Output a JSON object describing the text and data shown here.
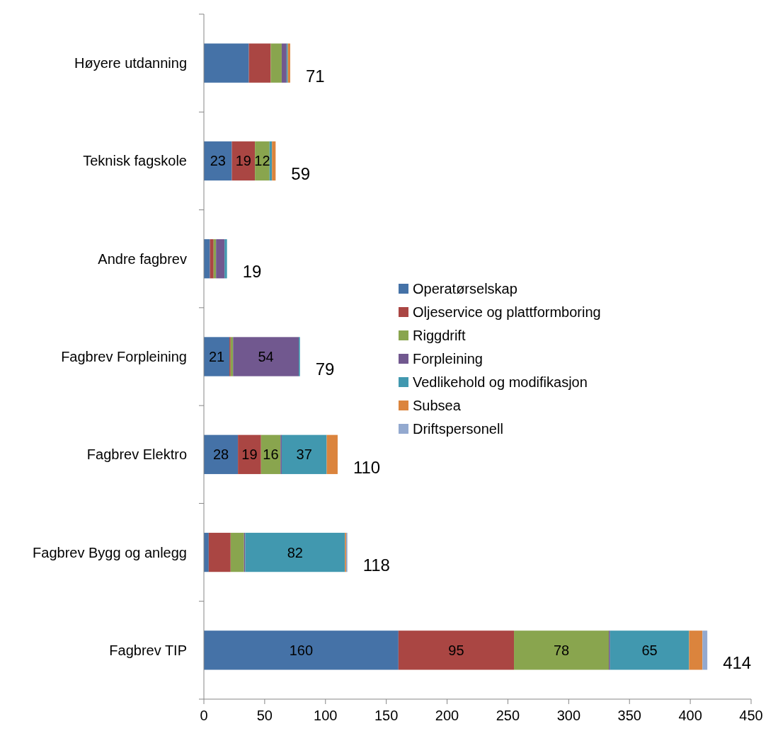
{
  "chart_data": {
    "type": "bar",
    "orientation": "horizontal",
    "stacked": true,
    "categories": [
      "Høyere utdanning",
      "Teknisk fagskole",
      "Andre fagbrev",
      "Fagbrev Forpleining",
      "Fagbrev Elektro",
      "Fagbrev Bygg og anlegg",
      "Fagbrev TIP"
    ],
    "series": [
      {
        "name": "Operatørselskap",
        "color": "#4572a7",
        "values": [
          37,
          23,
          5,
          21,
          28,
          4,
          160
        ],
        "value_labels": [
          null,
          "23",
          null,
          "21",
          "28",
          null,
          "160"
        ]
      },
      {
        "name": "Oljeservice og plattformboring",
        "color": "#aa4643",
        "values": [
          18,
          19,
          3,
          1,
          19,
          18,
          95
        ],
        "value_labels": [
          null,
          "19",
          null,
          null,
          "19",
          null,
          "95"
        ]
      },
      {
        "name": "Riggdrift",
        "color": "#89a54e",
        "values": [
          9,
          12,
          2,
          2,
          16,
          11,
          78
        ],
        "value_labels": [
          null,
          "12",
          null,
          null,
          "16",
          null,
          "78"
        ]
      },
      {
        "name": "Forpleining",
        "color": "#71588f",
        "values": [
          4,
          0,
          7,
          54,
          1,
          1,
          1
        ],
        "value_labels": [
          null,
          null,
          null,
          "54",
          null,
          null,
          null
        ]
      },
      {
        "name": "Vedlikehold og modifikasjon",
        "color": "#4198af",
        "values": [
          1,
          2,
          2,
          1,
          37,
          82,
          65
        ],
        "value_labels": [
          null,
          null,
          null,
          null,
          "37",
          "82",
          "65"
        ]
      },
      {
        "name": "Subsea",
        "color": "#db843d",
        "values": [
          2,
          3,
          0,
          0,
          9,
          1,
          11
        ]
      },
      {
        "name": "Driftspersonell",
        "color": "#93a9cf",
        "values": [
          0,
          0,
          0,
          0,
          0,
          1,
          4
        ]
      }
    ],
    "totals": [
      "71",
      "59",
      "19",
      "79",
      "110",
      "118",
      "414"
    ],
    "xlim": [
      0,
      450
    ],
    "xticks": [
      0,
      50,
      100,
      150,
      200,
      250,
      300,
      350,
      400,
      450
    ],
    "grid": false,
    "legend": "right"
  }
}
